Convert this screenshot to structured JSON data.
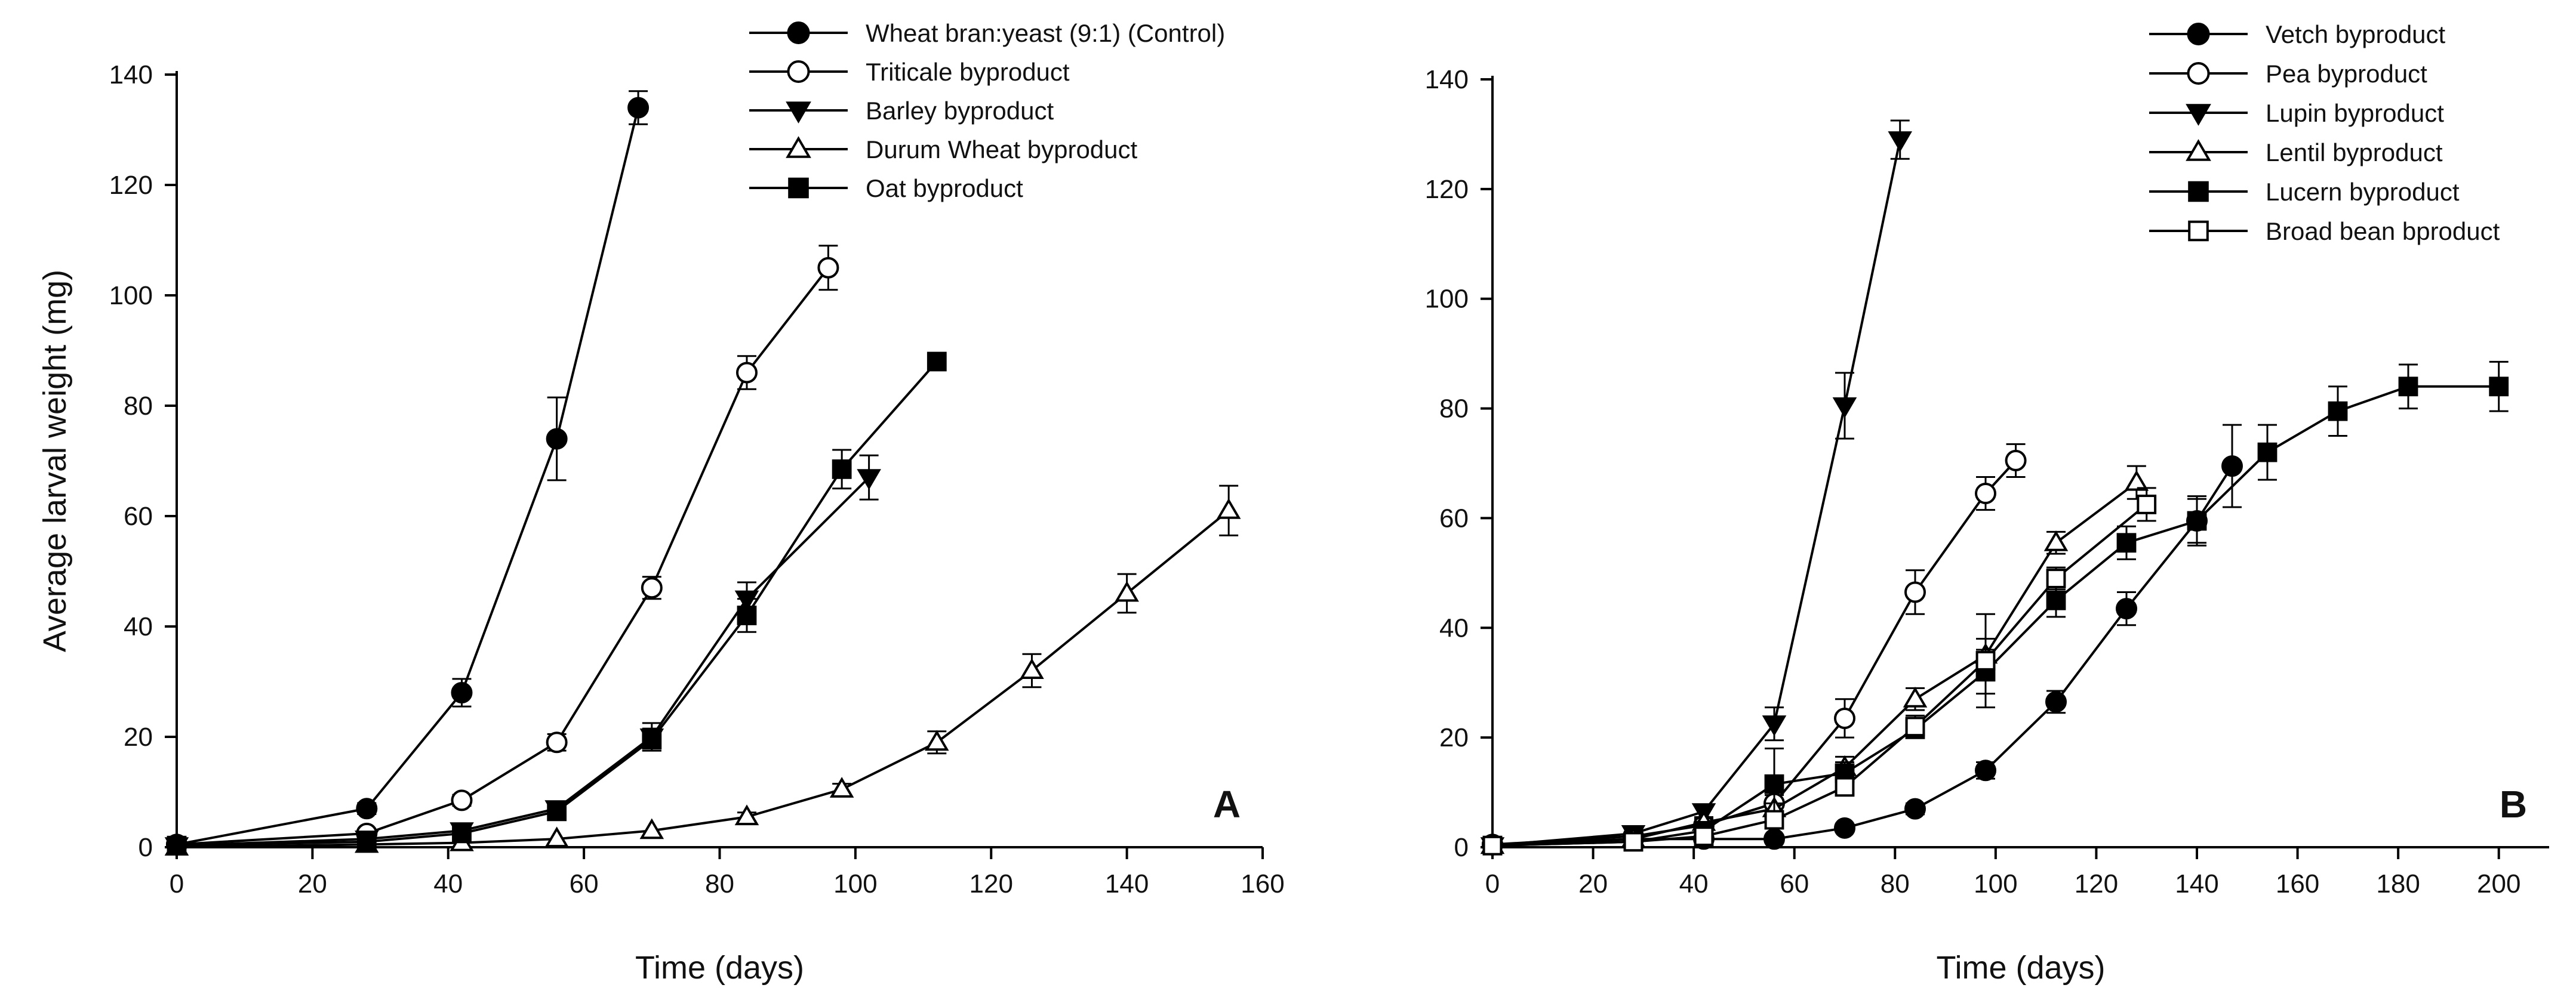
{
  "chart_data": [
    {
      "type": "line",
      "panel_label": "A",
      "xlabel": "Time (days)",
      "ylabel": "Average larval weight (mg)",
      "xlim": [
        0,
        160
      ],
      "ylim": [
        0,
        140
      ],
      "xticks": [
        0,
        20,
        40,
        60,
        80,
        100,
        120,
        140,
        160
      ],
      "yticks": [
        0,
        20,
        40,
        60,
        80,
        100,
        120,
        140
      ],
      "legend_position": "top-center",
      "series": [
        {
          "name": "Wheat bran:yeast (9:1) (Control)",
          "marker": "circle-filled",
          "x": [
            0,
            28,
            42,
            56,
            68
          ],
          "y": [
            0.5,
            7,
            28,
            74,
            134
          ],
          "err": [
            0.3,
            1,
            2.5,
            7.5,
            3
          ]
        },
        {
          "name": "Triticale byproduct",
          "marker": "circle-open",
          "x": [
            0,
            28,
            42,
            56,
            70,
            84,
            96
          ],
          "y": [
            0.5,
            2.5,
            8.5,
            19,
            47,
            86,
            105
          ],
          "err": [
            0.2,
            0.5,
            1,
            1.5,
            2,
            3,
            4
          ]
        },
        {
          "name": "Barley byproduct",
          "marker": "triangle-down-filled",
          "x": [
            0,
            28,
            42,
            56,
            70,
            84,
            102
          ],
          "y": [
            0.3,
            1.5,
            3,
            7,
            20,
            45,
            67
          ],
          "err": [
            0.2,
            0.3,
            0.5,
            1,
            2.5,
            3,
            4
          ]
        },
        {
          "name": "Durum Wheat byproduct",
          "marker": "triangle-up-open",
          "x": [
            0,
            28,
            42,
            56,
            70,
            84,
            98,
            112,
            126,
            140,
            155
          ],
          "y": [
            0,
            0.5,
            0.8,
            1.5,
            3,
            5.5,
            10.5,
            19,
            32,
            46,
            61
          ],
          "err": [
            0.1,
            0.2,
            0.2,
            0.3,
            0.5,
            0.8,
            1,
            2,
            3,
            3.5,
            4.5
          ]
        },
        {
          "name": "Oat byproduct",
          "marker": "square-filled",
          "x": [
            0,
            28,
            42,
            56,
            70,
            84,
            98,
            112
          ],
          "y": [
            0.3,
            1,
            2.5,
            6.5,
            19.5,
            42,
            68.5,
            88
          ],
          "err": [
            0.2,
            0.3,
            0.5,
            1,
            2,
            3,
            3.5,
            1
          ]
        }
      ]
    },
    {
      "type": "line",
      "panel_label": "B",
      "xlabel": "Time (days)",
      "ylabel": "",
      "xlim": [
        0,
        210
      ],
      "ylim": [
        0,
        140
      ],
      "xticks": [
        0,
        20,
        40,
        60,
        80,
        100,
        120,
        140,
        160,
        180,
        200
      ],
      "yticks": [
        0,
        20,
        40,
        60,
        80,
        100,
        120,
        140
      ],
      "legend_position": "top-right",
      "series": [
        {
          "name": "Vetch byproduct",
          "marker": "circle-filled",
          "x": [
            0,
            28,
            42,
            56,
            70,
            84,
            98,
            112,
            126,
            140,
            147
          ],
          "y": [
            0.5,
            1.5,
            1.5,
            1.5,
            3.5,
            7,
            14,
            26.5,
            43.5,
            59.5,
            69.5
          ],
          "err": [
            0.2,
            0.3,
            0.3,
            0.3,
            0.5,
            1,
            1.5,
            2,
            3,
            4,
            7.5
          ]
        },
        {
          "name": "Pea byproduct",
          "marker": "circle-open",
          "x": [
            0,
            28,
            42,
            56,
            70,
            84,
            98,
            104
          ],
          "y": [
            0.5,
            2,
            4,
            8,
            23.5,
            46.5,
            64.5,
            70.5
          ],
          "err": [
            0.2,
            0.5,
            1,
            1.5,
            3.5,
            4,
            3,
            3
          ]
        },
        {
          "name": "Lupin byproduct",
          "marker": "triangle-down-filled",
          "x": [
            0,
            28,
            42,
            56,
            70,
            81
          ],
          "y": [
            0.3,
            2.5,
            6.5,
            22.5,
            80.5,
            129
          ],
          "err": [
            0.2,
            0.5,
            1,
            3,
            6,
            3.5
          ]
        },
        {
          "name": "Lentil byproduct",
          "marker": "triangle-up-open",
          "x": [
            0,
            28,
            42,
            56,
            70,
            84,
            98,
            112,
            128
          ],
          "y": [
            0.3,
            1.5,
            4.5,
            7,
            14.5,
            27,
            35,
            55.5,
            66.5
          ],
          "err": [
            0.2,
            0.3,
            0.8,
            1,
            2,
            2,
            3,
            2,
            3
          ]
        },
        {
          "name": "Lucern byproduct",
          "marker": "square-filled",
          "x": [
            0,
            28,
            42,
            56,
            70,
            84,
            98,
            112,
            126,
            140,
            154,
            168,
            182,
            200
          ],
          "y": [
            0.3,
            1,
            3,
            11.5,
            13.5,
            21.5,
            32,
            45,
            55.5,
            59.5,
            72,
            79.5,
            84,
            84
          ],
          "err": [
            0.2,
            0.3,
            0.5,
            6.5,
            2,
            1.5,
            4,
            3,
            3,
            4.5,
            5,
            4.5,
            4,
            4.5
          ]
        },
        {
          "name": "Broad bean bproduct",
          "marker": "square-open",
          "x": [
            0,
            28,
            42,
            56,
            70,
            84,
            98,
            112,
            130
          ],
          "y": [
            0.3,
            1,
            2,
            5,
            11,
            22,
            34,
            49,
            62.5
          ],
          "err": [
            0.2,
            0.3,
            0.5,
            1,
            1.5,
            2,
            8.5,
            2,
            3
          ]
        }
      ]
    }
  ]
}
